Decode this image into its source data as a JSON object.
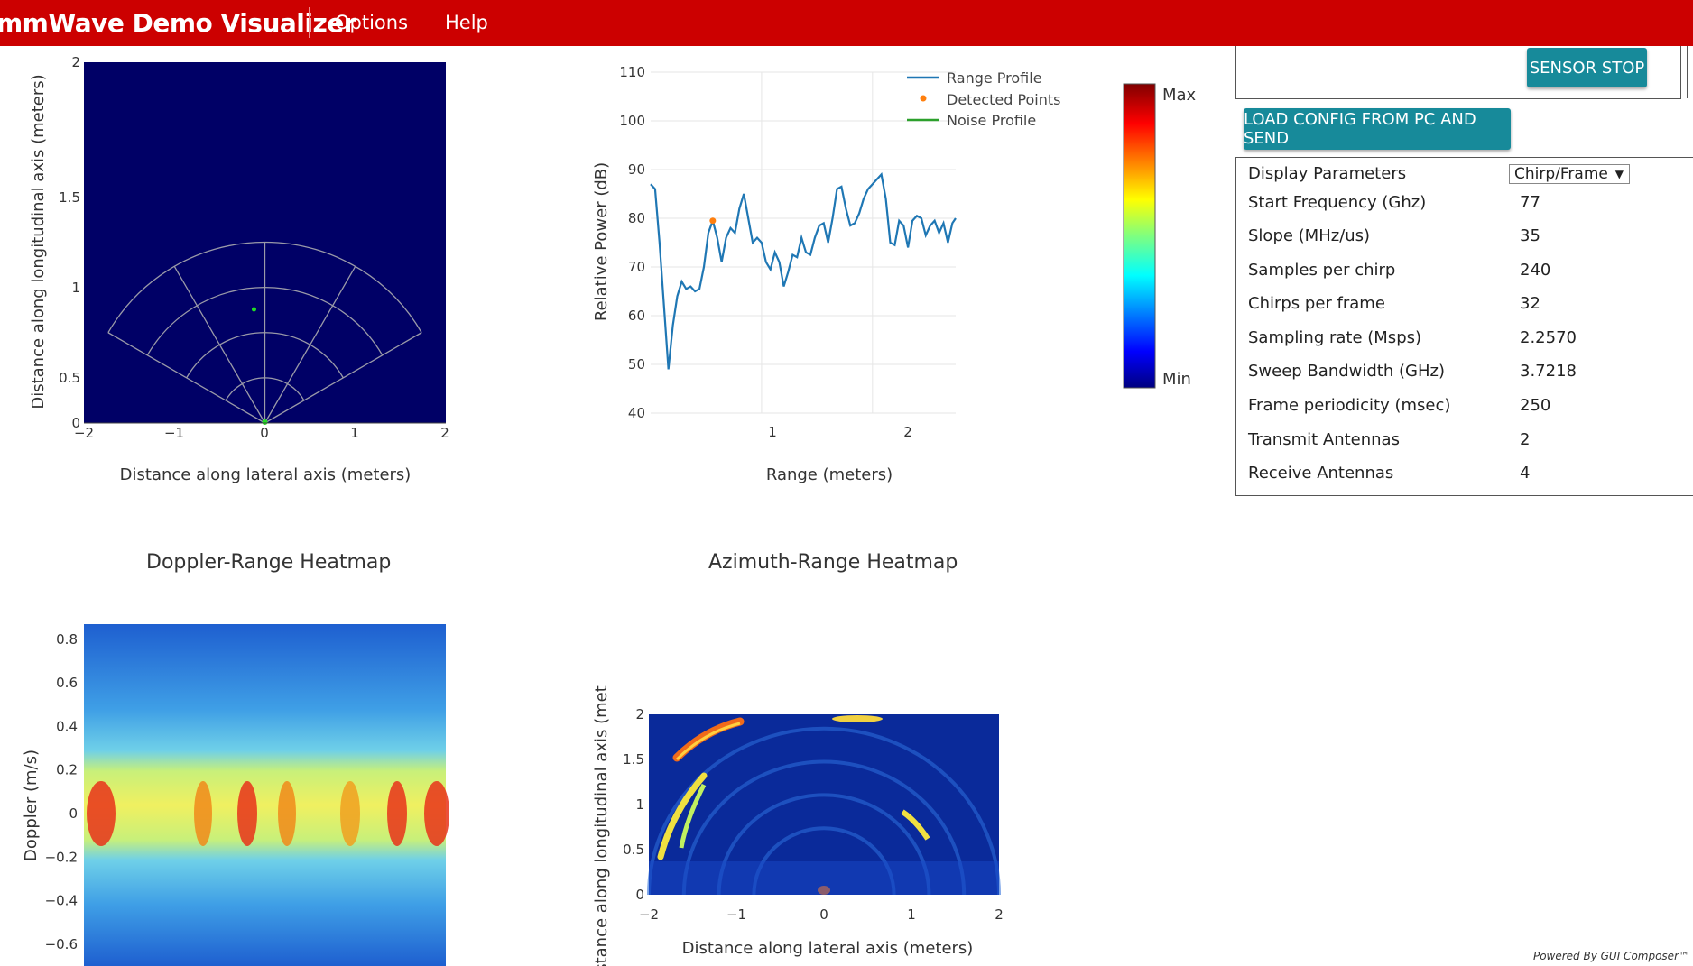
{
  "header": {
    "title": "mmWave Demo Visualizer",
    "menu": [
      "Options",
      "Help"
    ]
  },
  "colors": {
    "header_bg": "#cc0000",
    "plot_bg": "#000066",
    "button": "#178a9a",
    "range_line": "#1f77b4",
    "detected": "#ff7f0e",
    "noise": "#2ca02c"
  },
  "chart_data": [
    {
      "type": "scatter",
      "xlabel": "Distance along lateral axis (meters)",
      "ylabel": "Distance along longitudinal axis (meters)",
      "xlim": [
        -2,
        2
      ],
      "ylim": [
        0,
        2
      ],
      "xticks": [
        "−2",
        "−1",
        "0",
        "1",
        "2"
      ],
      "yticks": [
        "0",
        "0.5",
        "1",
        "1.5",
        "2"
      ],
      "points": [
        {
          "x": -0.12,
          "y": 0.63
        }
      ]
    },
    {
      "type": "line",
      "xlabel": "Range (meters)",
      "ylabel": "Relative Power (dB)",
      "xlim": [
        0,
        2.75
      ],
      "ylim": [
        40,
        110
      ],
      "xticks": [
        "1",
        "2"
      ],
      "yticks": [
        "40",
        "50",
        "60",
        "70",
        "80",
        "90",
        "100",
        "110"
      ],
      "legend": [
        "Range Profile",
        "Detected Points",
        "Noise Profile"
      ],
      "legend_position": "top-right",
      "series": [
        {
          "name": "Range Profile",
          "x": [
            0,
            0.04,
            0.08,
            0.12,
            0.16,
            0.2,
            0.24,
            0.28,
            0.32,
            0.36,
            0.4,
            0.44,
            0.48,
            0.52,
            0.56,
            0.6,
            0.64,
            0.68,
            0.72,
            0.76,
            0.8,
            0.84,
            0.88,
            0.92,
            0.96,
            1.0,
            1.04,
            1.08,
            1.12,
            1.16,
            1.2,
            1.24,
            1.28,
            1.32,
            1.36,
            1.4,
            1.44,
            1.48,
            1.52,
            1.56,
            1.6,
            1.64,
            1.68,
            1.72,
            1.76,
            1.8,
            1.84,
            1.88,
            1.92,
            1.96,
            2.0,
            2.04,
            2.08,
            2.12,
            2.16,
            2.2,
            2.24,
            2.28,
            2.32,
            2.36,
            2.4,
            2.44,
            2.48,
            2.52,
            2.56,
            2.6,
            2.64,
            2.68,
            2.72,
            2.75
          ],
          "values": [
            87,
            86,
            75,
            62,
            49,
            58,
            64,
            67,
            65.5,
            66,
            65,
            65.5,
            70,
            77,
            79.5,
            76,
            71,
            76,
            78,
            77,
            82,
            85,
            80,
            75,
            76,
            75,
            71,
            69.5,
            73,
            71,
            66,
            69,
            72.5,
            72,
            76,
            73,
            72.5,
            76,
            78.5,
            79,
            75,
            80,
            86,
            86.5,
            82,
            78.5,
            79,
            81,
            84,
            86,
            87,
            88,
            89,
            84,
            75,
            74.5,
            79.5,
            78.5,
            74,
            79.5,
            80.5,
            80,
            76.5,
            78.5,
            79.5,
            77,
            79,
            75,
            79,
            80
          ]
        },
        {
          "name": "Detected Points",
          "x": [
            0.56
          ],
          "values": [
            79.5
          ]
        },
        {
          "name": "Noise Profile",
          "x": [],
          "values": []
        }
      ]
    },
    {
      "type": "heatmap",
      "colorbar_labels": [
        "Max",
        "Min"
      ]
    },
    {
      "type": "heatmap",
      "title": "Doppler-Range Heatmap",
      "ylabel": "Doppler (m/s)",
      "ylim": [
        -0.7,
        0.87
      ],
      "yticks": [
        "−0.6",
        "−0.4",
        "−0.2",
        "0",
        "0.2",
        "0.4",
        "0.6",
        "0.8"
      ]
    },
    {
      "type": "heatmap",
      "title": "Azimuth-Range Heatmap",
      "xlabel": "Distance along lateral axis (meters)",
      "ylabel": "Distance along longitudinal axis (meters)",
      "xlim": [
        -2,
        2
      ],
      "ylim": [
        0,
        2
      ],
      "xticks": [
        "−2",
        "−1",
        "0",
        "1",
        "2"
      ],
      "yticks": [
        "0",
        "0.5",
        "1",
        "1.5",
        "2"
      ]
    }
  ],
  "panel": {
    "sensor_stop": "SENSOR STOP",
    "load_config": "LOAD CONFIG FROM PC AND SEND",
    "display_params_label": "Display Parameters",
    "display_params_select": "Chirp/Frame",
    "params": [
      {
        "label": "Start Frequency (Ghz)",
        "value": "77"
      },
      {
        "label": "Slope (MHz/us)",
        "value": "35"
      },
      {
        "label": "Samples per chirp",
        "value": "240"
      },
      {
        "label": "Chirps per frame",
        "value": "32"
      },
      {
        "label": "Sampling rate (Msps)",
        "value": "2.2570"
      },
      {
        "label": "Sweep Bandwidth (GHz)",
        "value": "3.7218"
      },
      {
        "label": "Frame periodicity (msec)",
        "value": "250"
      },
      {
        "label": "Transmit Antennas",
        "value": "2"
      },
      {
        "label": "Receive Antennas",
        "value": "4"
      }
    ]
  },
  "footer": "Powered By GUI Composer™"
}
